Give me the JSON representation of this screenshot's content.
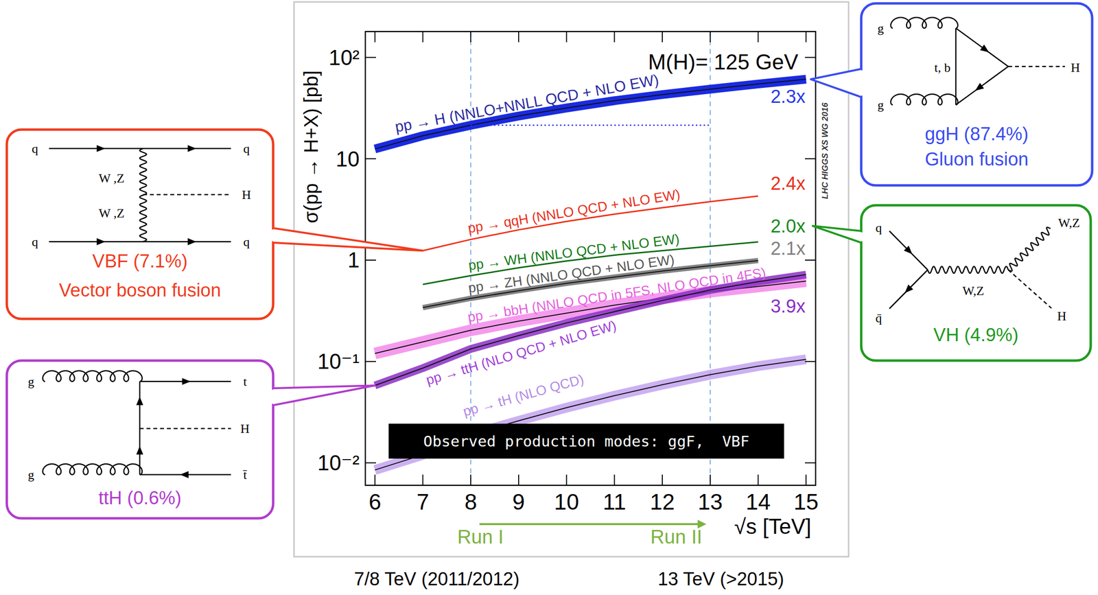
{
  "chart_data": {
    "type": "line",
    "title": "M(H)= 125 GeV",
    "x_label": "√s [TeV]",
    "y_label": "σ(pp → H+X) [pb]",
    "source": "LHC HIGGS XS WG 2016",
    "annotation": "Observed production modes: ggF,  VBF",
    "log": "y",
    "xlim": [
      5.8,
      15.2
    ],
    "ylim": [
      0.006,
      180
    ],
    "xticks": [
      6,
      7,
      8,
      9,
      10,
      11,
      12,
      13,
      14,
      15
    ],
    "yticks": [
      {
        "value": 0.01,
        "label": "10⁻²"
      },
      {
        "value": 0.1,
        "label": "10⁻¹"
      },
      1,
      10,
      {
        "value": 100,
        "label": "10²"
      }
    ],
    "x": [
      6,
      7,
      8,
      9,
      10,
      11,
      12,
      13,
      14,
      15
    ],
    "runs": [
      {
        "x": 8,
        "label": "Run I",
        "period": "7/8 TeV (2011/2012)"
      },
      {
        "x": 13,
        "label": "Run II",
        "period": "13 TeV (>2015)"
      }
    ],
    "series": [
      {
        "name": "pp → H (NNLO+NNLL QCD + NLO EW)",
        "color": "#1a2be0",
        "line_style": "band",
        "ratio": "2.3x",
        "values": [
          12.5,
          16.85,
          21.42,
          26.4,
          31.7,
          37.4,
          43.0,
          48.58,
          54.67,
          60.9
        ],
        "callout": {
          "label": "ggH (87.4%)",
          "sublabel": "Gluon fusion",
          "color": "#3a4cf0",
          "diagram_labels": [
            "g",
            "g",
            "t, b",
            "H"
          ]
        }
      },
      {
        "name": "pp → qqH (NNLO QCD + NLO EW)",
        "color": "#f0311a",
        "line_style": "solid",
        "ratio": "2.4x",
        "values": [
          null,
          1.24,
          1.6,
          1.99,
          2.41,
          2.84,
          3.29,
          3.78,
          4.28,
          null
        ],
        "callout": {
          "label": "VBF (7.1%)",
          "sublabel": "Vector boson fusion",
          "color": "#f03c1e",
          "diagram_labels": [
            "q",
            "q",
            "q",
            "q",
            "W ,Z",
            "W ,Z",
            "H"
          ]
        }
      },
      {
        "name": "pp → WH (NNLO QCD + NLO EW)",
        "color": "#0d6b12",
        "line_style": "solid",
        "ratio": "2.0x",
        "values": [
          null,
          0.577,
          0.703,
          0.84,
          0.98,
          1.12,
          1.24,
          1.37,
          1.51,
          null
        ],
        "callout": {
          "label": "VH (4.9%)",
          "color": "#1f9a1f",
          "diagram_labels": [
            "q",
            "q̄",
            "W,Z",
            "W,Z",
            "H"
          ]
        }
      },
      {
        "name": "pp → ZH (NNLO QCD + NLO EW)",
        "color": "#6e6e6e",
        "line_style": "band",
        "ratio": "2.1x",
        "values": [
          null,
          0.34,
          0.42,
          0.5,
          0.59,
          0.68,
          0.78,
          0.88,
          0.99,
          null
        ]
      },
      {
        "name": "pp → bbH (NNLO QCD in 5FS, NLO QCD in 4FS)",
        "color": "#f27ae8",
        "line_style": "band",
        "values": [
          0.12,
          0.156,
          0.203,
          0.25,
          0.3,
          0.36,
          0.42,
          0.488,
          0.55,
          0.62
        ]
      },
      {
        "name": "pp → ttH (NLO QCD + NLO EW)",
        "color": "#8b2fc4",
        "line_style": "band",
        "ratio": "3.9x",
        "values": [
          0.058,
          0.086,
          0.133,
          0.18,
          0.24,
          0.31,
          0.4,
          0.507,
          0.613,
          0.72
        ],
        "callout": {
          "label": "ttH (0.6%)",
          "color": "#b03ccc",
          "diagram_labels": [
            "g",
            "g",
            "t",
            "H",
            "t̄"
          ]
        }
      },
      {
        "name": "pp → tH (NLO QCD)",
        "color": "#b690ec",
        "line_style": "band",
        "values": [
          0.0085,
          0.012,
          0.019,
          0.026,
          0.035,
          0.046,
          0.059,
          0.074,
          0.09,
          0.105
        ]
      }
    ]
  }
}
